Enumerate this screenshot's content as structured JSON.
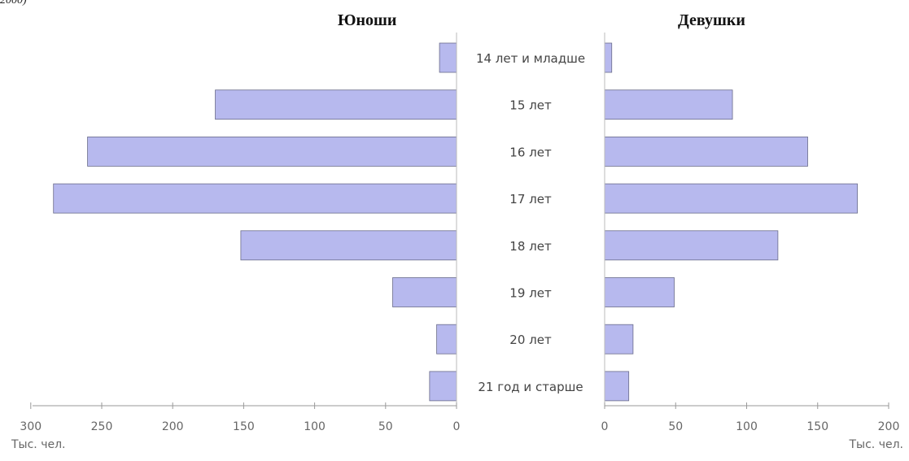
{
  "caption_fragment": "2000)",
  "chart_data": {
    "type": "bar",
    "orientation": "horizontal-population-pyramid",
    "categories": [
      "14 лет и младше",
      "15 лет",
      "16 лет",
      "17 лет",
      "18 лет",
      "19 лет",
      "20 лет",
      "21 год и старше"
    ],
    "series": [
      {
        "name": "Юноши",
        "values": [
          12,
          170,
          260,
          284,
          152,
          45,
          14,
          19
        ],
        "color": "#b7b9ee"
      },
      {
        "name": "Девушки",
        "values": [
          5,
          90,
          143,
          178,
          122,
          49,
          20,
          17
        ],
        "color": "#b7b9ee"
      }
    ],
    "left_axis": {
      "xlim": [
        300,
        0
      ],
      "ticks": [
        "300",
        "250",
        "200",
        "150",
        "100",
        "50",
        "0"
      ],
      "unit": "Тыс. чел."
    },
    "right_axis": {
      "xlim": [
        0,
        200
      ],
      "ticks": [
        "0",
        "50",
        "100",
        "150",
        "200"
      ],
      "unit": "Тыс. чел."
    },
    "grid": false
  }
}
